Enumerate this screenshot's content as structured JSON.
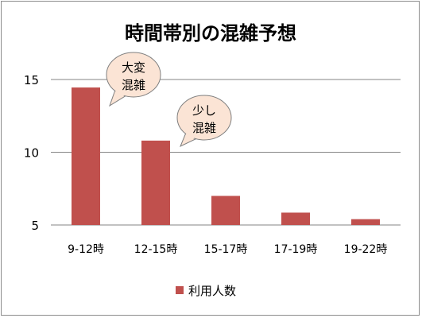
{
  "chart_data": {
    "type": "bar",
    "title": "時間帯別の混雑予想",
    "categories": [
      "9-12時",
      "12-15時",
      "15-17時",
      "17-19時",
      "19-22時"
    ],
    "series": [
      {
        "name": "利用人数",
        "values": [
          14.45,
          10.8,
          7.0,
          5.85,
          5.4
        ]
      }
    ],
    "ylim": [
      5,
      15
    ],
    "yticks": [
      5,
      10,
      15
    ],
    "grid": true,
    "legend": "bottom",
    "annotations": [
      {
        "lines": [
          "大変",
          "混雑"
        ],
        "category": "9-12時"
      },
      {
        "lines": [
          "少し",
          "混雑"
        ],
        "category": "12-15時"
      }
    ],
    "colors": {
      "bar": "#c0504d",
      "bubble_fill": "#fbe4d5",
      "bubble_stroke": "#7f7f7f",
      "grid": "#868686"
    }
  }
}
